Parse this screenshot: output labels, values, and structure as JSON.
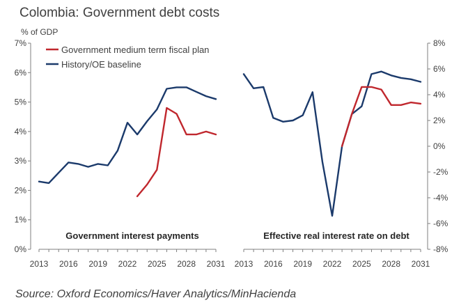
{
  "title": "Colombia: Government debt costs",
  "source": "Source: Oxford Economics/Haver Analytics/MinHacienda",
  "colors": {
    "fiscal_plan": "#c0272d",
    "baseline": "#1b3a6b",
    "axis": "#7f7f7f"
  },
  "chart_data": [
    {
      "type": "line",
      "title": "Government interest payments",
      "ylabel": "% of GDP",
      "ylim": [
        0,
        7
      ],
      "yticks": [
        "0%",
        "1%",
        "2%",
        "3%",
        "4%",
        "5%",
        "6%",
        "7%"
      ],
      "xlim": [
        2013,
        2031
      ],
      "xticks": [
        "2013",
        "2016",
        "2019",
        "2022",
        "2025",
        "2028",
        "2031"
      ],
      "legend": "top-left",
      "series": [
        {
          "name": "Government medium term fiscal plan",
          "x": [
            2023,
            2024,
            2025,
            2026,
            2027,
            2028,
            2029,
            2030,
            2031
          ],
          "values": [
            1.8,
            2.2,
            2.7,
            4.8,
            4.6,
            3.9,
            3.9,
            4.0,
            3.9
          ]
        },
        {
          "name": "History/OE baseline",
          "x": [
            2013,
            2014,
            2015,
            2016,
            2017,
            2018,
            2019,
            2020,
            2021,
            2022,
            2023,
            2024,
            2025,
            2026,
            2027,
            2028,
            2029,
            2030,
            2031
          ],
          "values": [
            2.3,
            2.25,
            2.6,
            2.95,
            2.9,
            2.8,
            2.9,
            2.85,
            3.35,
            4.3,
            3.9,
            4.35,
            4.75,
            5.45,
            5.5,
            5.5,
            5.35,
            5.2,
            5.1
          ]
        }
      ]
    },
    {
      "type": "line",
      "title": "Effective real interest rate on debt",
      "ylim": [
        -8,
        8
      ],
      "yticks": [
        "-8%",
        "-6%",
        "-4%",
        "-2%",
        "0%",
        "2%",
        "4%",
        "6%",
        "8%"
      ],
      "xlim": [
        2013,
        2031
      ],
      "xticks": [
        "2013",
        "2016",
        "2019",
        "2022",
        "2025",
        "2028",
        "2031"
      ],
      "series": [
        {
          "name": "Government medium term fiscal plan",
          "x": [
            2023,
            2024,
            2025,
            2026,
            2027,
            2028,
            2029,
            2030,
            2031
          ],
          "values": [
            0.0,
            2.5,
            4.6,
            4.6,
            4.4,
            3.2,
            3.2,
            3.4,
            3.3
          ]
        },
        {
          "name": "History/OE baseline",
          "x": [
            2013,
            2014,
            2015,
            2016,
            2017,
            2018,
            2019,
            2020,
            2021,
            2022,
            2023,
            2024,
            2025,
            2026,
            2027,
            2028,
            2029,
            2030,
            2031
          ],
          "values": [
            5.6,
            4.5,
            4.6,
            2.2,
            1.9,
            2.0,
            2.4,
            4.2,
            -1.2,
            -5.4,
            0.0,
            2.5,
            3.1,
            5.6,
            5.8,
            5.5,
            5.3,
            5.2,
            5.0
          ]
        }
      ]
    }
  ]
}
